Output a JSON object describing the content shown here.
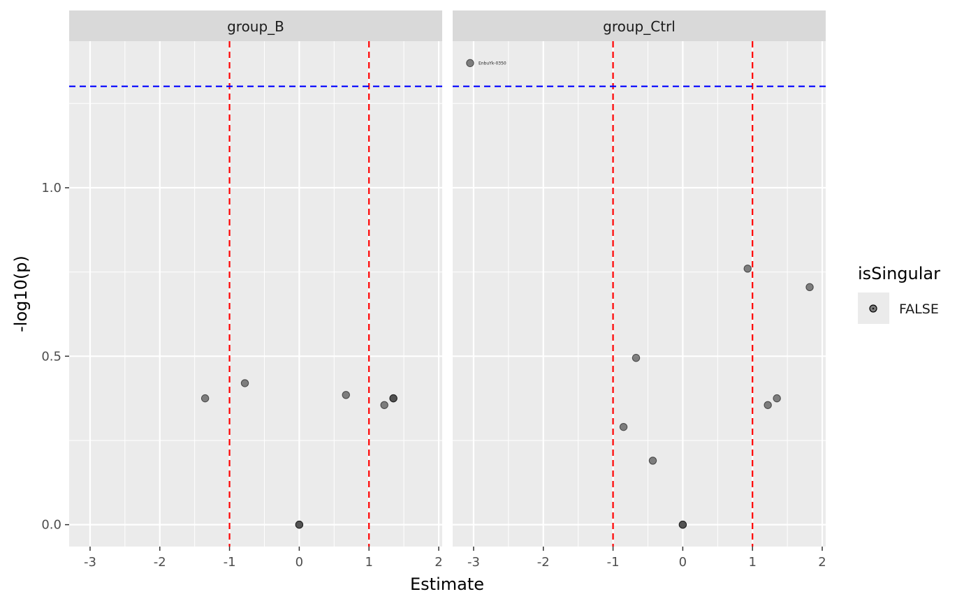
{
  "chart_data": {
    "type": "scatter",
    "xlabel": "Estimate",
    "ylabel": "-log10(p)",
    "xlim": [
      -3.3,
      2.05
    ],
    "ylim": [
      -0.065,
      1.435
    ],
    "x_ticks": [
      -3,
      -2,
      -1,
      0,
      1,
      2
    ],
    "x_tick_labels": [
      "-3",
      "-2",
      "-1",
      "0",
      "1",
      "2"
    ],
    "y_ticks": [
      0.0,
      0.5,
      1.0
    ],
    "y_tick_labels": [
      "0.0",
      "0.5",
      "1.0"
    ],
    "grid": true,
    "reference_lines": {
      "vertical": [
        -1,
        1
      ],
      "vertical_color": "#ff0000",
      "horizontal": [
        1.301
      ],
      "horizontal_color": "#0000ff"
    },
    "point_color": "#333333",
    "legend": {
      "title": "isSingular",
      "entries": [
        "FALSE"
      ],
      "position": "right"
    },
    "panels": [
      {
        "name": "group_B",
        "points": [
          {
            "x": -1.35,
            "y": 0.375
          },
          {
            "x": -0.78,
            "y": 0.42
          },
          {
            "x": 0.0,
            "y": 0.0
          },
          {
            "x": 0.0,
            "y": 0.0
          },
          {
            "x": 0.67,
            "y": 0.385
          },
          {
            "x": 1.22,
            "y": 0.355
          },
          {
            "x": 1.35,
            "y": 0.375
          },
          {
            "x": 1.35,
            "y": 0.375
          }
        ]
      },
      {
        "name": "group_Ctrl",
        "points": [
          {
            "x": -3.05,
            "y": 1.37,
            "label": "EnbuYk-0350"
          },
          {
            "x": -0.85,
            "y": 0.29
          },
          {
            "x": -0.67,
            "y": 0.495
          },
          {
            "x": -0.43,
            "y": 0.19
          },
          {
            "x": 0.0,
            "y": 0.0
          },
          {
            "x": 0.0,
            "y": 0.0
          },
          {
            "x": 0.93,
            "y": 0.76
          },
          {
            "x": 1.22,
            "y": 0.355
          },
          {
            "x": 1.35,
            "y": 0.375
          },
          {
            "x": 1.82,
            "y": 0.705
          }
        ]
      }
    ]
  }
}
